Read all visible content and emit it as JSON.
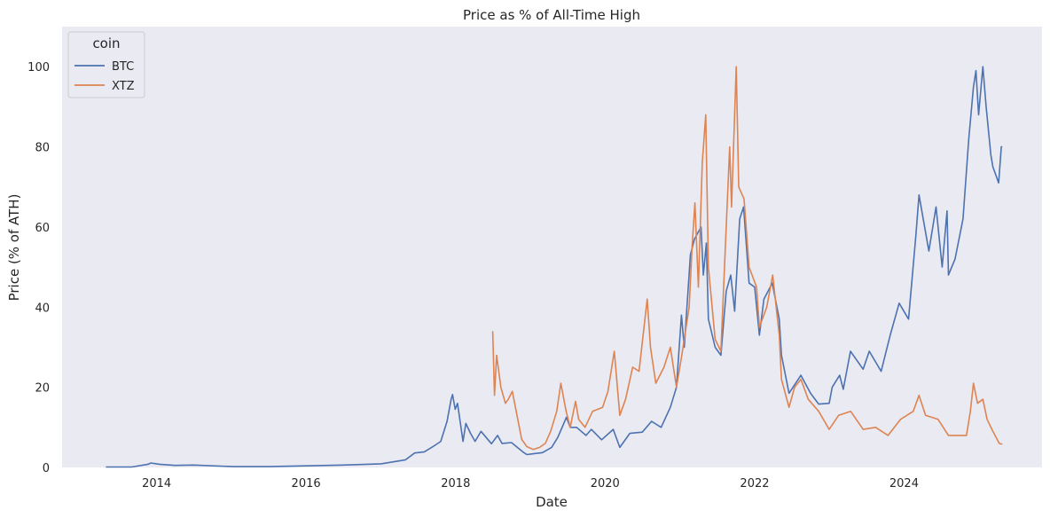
{
  "chart_data": {
    "type": "line",
    "title": "Price as % of All-Time High",
    "xlabel": "Date",
    "ylabel": "Price (% of ATH)",
    "xlim": [
      "2012-09-26",
      "2025-11-05"
    ],
    "ylim": [
      0,
      110
    ],
    "x_ticks": [
      "2014",
      "2016",
      "2018",
      "2020",
      "2022",
      "2024"
    ],
    "y_ticks": [
      0,
      20,
      40,
      60,
      80,
      100
    ],
    "grid": false,
    "legend": {
      "title": "coin",
      "position": "top-left"
    },
    "series": [
      {
        "name": "BTC",
        "color": "#4c72b0",
        "points": [
          [
            "2013-04-28",
            0.1
          ],
          [
            "2013-09-01",
            0.1
          ],
          [
            "2013-11-20",
            0.8
          ],
          [
            "2013-12-04",
            1.1
          ],
          [
            "2014-01-15",
            0.8
          ],
          [
            "2014-04-01",
            0.5
          ],
          [
            "2014-07-01",
            0.6
          ],
          [
            "2015-01-15",
            0.2
          ],
          [
            "2015-07-01",
            0.2
          ],
          [
            "2016-01-01",
            0.4
          ],
          [
            "2016-07-01",
            0.6
          ],
          [
            "2017-01-01",
            0.9
          ],
          [
            "2017-05-01",
            1.9
          ],
          [
            "2017-06-15",
            3.6
          ],
          [
            "2017-08-01",
            3.9
          ],
          [
            "2017-09-15",
            5.3
          ],
          [
            "2017-10-20",
            6.5
          ],
          [
            "2017-11-20",
            11.5
          ],
          [
            "2017-12-10",
            17.0
          ],
          [
            "2017-12-17",
            18.2
          ],
          [
            "2017-12-30",
            14.5
          ],
          [
            "2018-01-10",
            16.0
          ],
          [
            "2018-02-06",
            6.5
          ],
          [
            "2018-02-20",
            11.0
          ],
          [
            "2018-03-15",
            8.5
          ],
          [
            "2018-04-06",
            6.5
          ],
          [
            "2018-05-05",
            9.0
          ],
          [
            "2018-06-25",
            5.9
          ],
          [
            "2018-07-25",
            8.0
          ],
          [
            "2018-08-15",
            6.0
          ],
          [
            "2018-10-01",
            6.2
          ],
          [
            "2018-11-25",
            3.9
          ],
          [
            "2018-12-15",
            3.2
          ],
          [
            "2019-01-15",
            3.4
          ],
          [
            "2019-03-01",
            3.7
          ],
          [
            "2019-04-15",
            5.0
          ],
          [
            "2019-05-15",
            7.5
          ],
          [
            "2019-06-26",
            12.5
          ],
          [
            "2019-07-15",
            10.0
          ],
          [
            "2019-08-15",
            10.0
          ],
          [
            "2019-09-30",
            8.0
          ],
          [
            "2019-10-26",
            9.5
          ],
          [
            "2019-12-15",
            6.9
          ],
          [
            "2020-02-10",
            9.5
          ],
          [
            "2020-03-13",
            5.0
          ],
          [
            "2020-05-01",
            8.5
          ],
          [
            "2020-07-01",
            8.8
          ],
          [
            "2020-08-15",
            11.5
          ],
          [
            "2020-10-01",
            10.0
          ],
          [
            "2020-11-15",
            15.0
          ],
          [
            "2020-12-15",
            20.0
          ],
          [
            "2021-01-08",
            38.0
          ],
          [
            "2021-01-22",
            30.0
          ],
          [
            "2021-02-21",
            53.0
          ],
          [
            "2021-03-13",
            57.0
          ],
          [
            "2021-04-14",
            60.0
          ],
          [
            "2021-04-25",
            48.0
          ],
          [
            "2021-05-10",
            56.0
          ],
          [
            "2021-05-20",
            37.0
          ],
          [
            "2021-06-22",
            30.0
          ],
          [
            "2021-07-20",
            28.0
          ],
          [
            "2021-08-15",
            44.0
          ],
          [
            "2021-09-06",
            48.0
          ],
          [
            "2021-09-25",
            39.0
          ],
          [
            "2021-10-20",
            62.0
          ],
          [
            "2021-11-08",
            65.0
          ],
          [
            "2021-12-05",
            46.0
          ],
          [
            "2022-01-01",
            45.0
          ],
          [
            "2022-01-24",
            33.0
          ],
          [
            "2022-02-15",
            42.0
          ],
          [
            "2022-03-28",
            46.0
          ],
          [
            "2022-05-01",
            37.0
          ],
          [
            "2022-05-12",
            28.0
          ],
          [
            "2022-06-18",
            18.5
          ],
          [
            "2022-08-15",
            23.0
          ],
          [
            "2022-10-01",
            18.5
          ],
          [
            "2022-11-10",
            15.8
          ],
          [
            "2022-12-31",
            16.0
          ],
          [
            "2023-01-15",
            20.0
          ],
          [
            "2023-02-20",
            23.0
          ],
          [
            "2023-03-10",
            19.5
          ],
          [
            "2023-04-14",
            29.0
          ],
          [
            "2023-06-15",
            24.5
          ],
          [
            "2023-07-15",
            29.0
          ],
          [
            "2023-09-11",
            24.0
          ],
          [
            "2023-10-25",
            33.0
          ],
          [
            "2023-12-08",
            41.0
          ],
          [
            "2024-01-23",
            37.0
          ],
          [
            "2024-02-28",
            58.0
          ],
          [
            "2024-03-14",
            68.0
          ],
          [
            "2024-05-01",
            54.0
          ],
          [
            "2024-06-05",
            65.0
          ],
          [
            "2024-07-05",
            50.0
          ],
          [
            "2024-07-29",
            64.0
          ],
          [
            "2024-08-05",
            48.0
          ],
          [
            "2024-09-06",
            52.0
          ],
          [
            "2024-10-15",
            62.0
          ],
          [
            "2024-11-12",
            82.0
          ],
          [
            "2024-12-05",
            95.0
          ],
          [
            "2024-12-17",
            99.0
          ],
          [
            "2024-12-30",
            88.0
          ],
          [
            "2025-01-20",
            100.0
          ],
          [
            "2025-02-05",
            90.0
          ],
          [
            "2025-02-28",
            78.0
          ],
          [
            "2025-03-10",
            75.0
          ],
          [
            "2025-04-07",
            71.0
          ],
          [
            "2025-04-20",
            80.0
          ],
          [
            "2025-04-25",
            80.0
          ]
        ]
      },
      {
        "name": "XTZ",
        "color": "#dd8452",
        "points": [
          [
            "2018-07-01",
            34.0
          ],
          [
            "2018-07-10",
            18.0
          ],
          [
            "2018-07-20",
            28.0
          ],
          [
            "2018-08-10",
            20.0
          ],
          [
            "2018-09-01",
            16.0
          ],
          [
            "2018-09-15",
            17.0
          ],
          [
            "2018-10-05",
            19.0
          ],
          [
            "2018-10-20",
            15.0
          ],
          [
            "2018-11-20",
            7.0
          ],
          [
            "2018-12-15",
            5.2
          ],
          [
            "2019-01-15",
            4.5
          ],
          [
            "2019-02-15",
            5.0
          ],
          [
            "2019-03-15",
            6.0
          ],
          [
            "2019-04-10",
            9.0
          ],
          [
            "2019-05-10",
            14.0
          ],
          [
            "2019-05-30",
            21.0
          ],
          [
            "2019-06-25",
            14.0
          ],
          [
            "2019-07-15",
            10.0
          ],
          [
            "2019-08-10",
            16.5
          ],
          [
            "2019-08-25",
            12.0
          ],
          [
            "2019-09-25",
            10.0
          ],
          [
            "2019-11-01",
            14.0
          ],
          [
            "2019-12-20",
            15.0
          ],
          [
            "2020-01-15",
            19.0
          ],
          [
            "2020-02-15",
            29.0
          ],
          [
            "2020-03-13",
            13.0
          ],
          [
            "2020-04-10",
            17.0
          ],
          [
            "2020-05-15",
            25.0
          ],
          [
            "2020-06-15",
            24.0
          ],
          [
            "2020-07-25",
            42.0
          ],
          [
            "2020-08-10",
            30.0
          ],
          [
            "2020-09-05",
            21.0
          ],
          [
            "2020-10-15",
            25.0
          ],
          [
            "2020-11-15",
            30.0
          ],
          [
            "2020-12-15",
            20.0
          ],
          [
            "2021-01-10",
            28.0
          ],
          [
            "2021-02-15",
            40.0
          ],
          [
            "2021-03-01",
            55.0
          ],
          [
            "2021-03-15",
            66.0
          ],
          [
            "2021-04-01",
            45.0
          ],
          [
            "2021-04-20",
            76.0
          ],
          [
            "2021-05-07",
            88.0
          ],
          [
            "2021-05-20",
            50.0
          ],
          [
            "2021-06-22",
            32.0
          ],
          [
            "2021-07-20",
            29.0
          ],
          [
            "2021-08-15",
            60.0
          ],
          [
            "2021-09-01",
            80.0
          ],
          [
            "2021-09-10",
            65.0
          ],
          [
            "2021-10-03",
            100.0
          ],
          [
            "2021-10-15",
            70.0
          ],
          [
            "2021-11-10",
            67.0
          ],
          [
            "2021-12-05",
            50.0
          ],
          [
            "2022-01-10",
            45.0
          ],
          [
            "2022-01-24",
            35.0
          ],
          [
            "2022-03-01",
            40.0
          ],
          [
            "2022-03-30",
            48.0
          ],
          [
            "2022-05-01",
            33.0
          ],
          [
            "2022-05-12",
            22.0
          ],
          [
            "2022-06-18",
            15.0
          ],
          [
            "2022-07-15",
            20.0
          ],
          [
            "2022-08-15",
            22.0
          ],
          [
            "2022-09-20",
            17.0
          ],
          [
            "2022-11-10",
            14.0
          ],
          [
            "2022-12-31",
            9.5
          ],
          [
            "2023-02-15",
            13.0
          ],
          [
            "2023-04-15",
            14.0
          ],
          [
            "2023-06-15",
            9.5
          ],
          [
            "2023-08-15",
            10.0
          ],
          [
            "2023-10-15",
            8.0
          ],
          [
            "2023-12-15",
            12.0
          ],
          [
            "2024-02-15",
            14.0
          ],
          [
            "2024-03-14",
            18.0
          ],
          [
            "2024-04-15",
            13.0
          ],
          [
            "2024-06-15",
            12.0
          ],
          [
            "2024-08-05",
            8.0
          ],
          [
            "2024-09-15",
            8.0
          ],
          [
            "2024-11-01",
            8.0
          ],
          [
            "2024-11-20",
            14.0
          ],
          [
            "2024-12-05",
            21.0
          ],
          [
            "2024-12-25",
            16.0
          ],
          [
            "2025-01-20",
            17.0
          ],
          [
            "2025-02-10",
            12.0
          ],
          [
            "2025-03-10",
            9.0
          ],
          [
            "2025-04-10",
            6.0
          ],
          [
            "2025-04-25",
            5.8
          ]
        ]
      }
    ]
  }
}
